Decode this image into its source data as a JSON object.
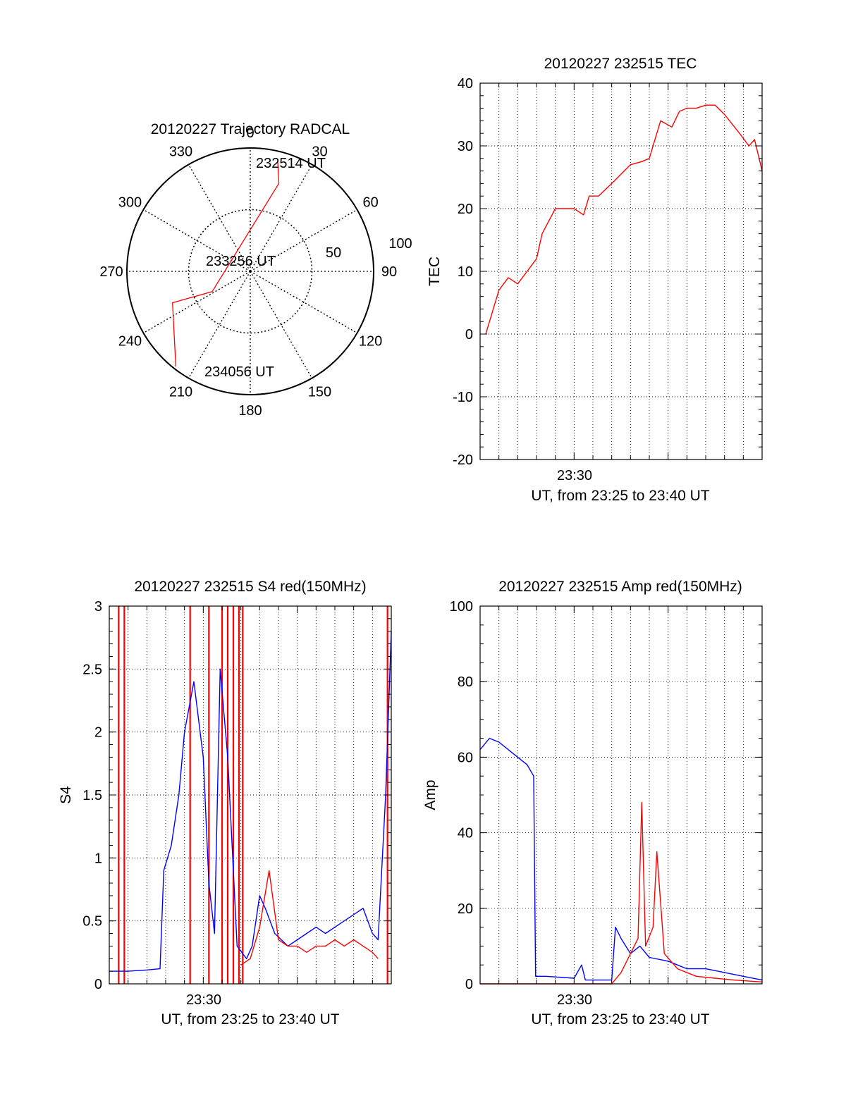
{
  "colors": {
    "red": "#ff0000",
    "blue": "#0000ff",
    "axis": "#000000",
    "grid": "#000000"
  },
  "chart_data": [
    {
      "type": "polar",
      "title": "20120227 Trajectory RADCAL",
      "theta_labels": [
        "0",
        "30",
        "60",
        "90",
        "120",
        "150",
        "180",
        "210",
        "240",
        "270",
        "300",
        "330"
      ],
      "radius_labels": [
        "50",
        "100"
      ],
      "radius_range": [
        0,
        100
      ],
      "annotations": [
        "232514 UT",
        "233256 UT",
        "234056 UT"
      ],
      "series": [
        {
          "color": "red",
          "points": [
            [
              14,
              92
            ],
            [
              18,
              75
            ],
            [
              242,
              35
            ],
            [
              248,
              68
            ],
            [
              218,
              98
            ]
          ]
        }
      ]
    },
    {
      "type": "line",
      "title": "20120227 232515 TEC",
      "xlabel": "UT, from 23:25 to 23:40 UT",
      "ylabel": "TEC",
      "xlim": [
        0,
        15
      ],
      "ylim": [
        -20,
        40
      ],
      "x_tick_labels": [
        "23:30"
      ],
      "y_tick_labels": [
        "-20",
        "-10",
        "0",
        "10",
        "20",
        "30",
        "40"
      ],
      "grid": true,
      "series": [
        {
          "color": "red",
          "x": [
            0.3,
            0.6,
            1.0,
            1.5,
            2.0,
            2.5,
            3.0,
            3.3,
            4.0,
            4.5,
            5.0,
            5.5,
            5.8,
            6.3,
            7.0,
            8.0,
            8.6,
            9.0,
            9.3,
            9.6,
            10.2,
            10.6,
            11.0,
            11.5,
            12.0,
            12.5,
            13.0,
            13.8,
            14.3,
            14.6,
            15.0
          ],
          "y": [
            0,
            3,
            7,
            9,
            8,
            10,
            12,
            16,
            20,
            20,
            20,
            19,
            22,
            22,
            24,
            27,
            27.5,
            28,
            31,
            34,
            33,
            35.5,
            36,
            36,
            36.5,
            36.5,
            35,
            32,
            30,
            31,
            26
          ]
        }
      ]
    },
    {
      "type": "line",
      "title": "20120227 232515 S4 red(150MHz)",
      "xlabel": "UT, from 23:25 to 23:40 UT",
      "ylabel": "S4",
      "xlim": [
        0,
        15
      ],
      "ylim": [
        0,
        3
      ],
      "x_tick_labels": [
        "23:30"
      ],
      "y_tick_labels": [
        "0",
        "0.5",
        "1",
        "1.5",
        "2",
        "2.5",
        "3"
      ],
      "grid": true,
      "series": [
        {
          "color": "blue",
          "x": [
            0,
            1,
            2,
            2.7,
            2.9,
            3.3,
            3.7,
            4.0,
            4.5,
            5.0,
            5.3,
            5.6,
            5.9,
            6.3,
            6.8,
            7.3,
            7.6,
            8.0,
            8.3,
            8.8,
            9.5,
            10.0,
            10.5,
            11.0,
            11.5,
            12.0,
            12.5,
            13.0,
            13.5,
            14.0,
            14.3,
            14.7,
            15.0
          ],
          "y": [
            0.1,
            0.1,
            0.11,
            0.12,
            0.9,
            1.1,
            1.5,
            2.0,
            2.4,
            1.8,
            0.8,
            0.4,
            2.5,
            1.8,
            0.3,
            0.2,
            0.3,
            0.7,
            0.6,
            0.4,
            0.3,
            0.35,
            0.4,
            0.45,
            0.4,
            0.45,
            0.5,
            0.55,
            0.6,
            0.4,
            0.35,
            1.5,
            2.8
          ]
        },
        {
          "color": "red",
          "x": [
            7.0,
            7.5,
            8.0,
            8.5,
            9.0,
            9.5,
            10.0,
            10.5,
            11.0,
            11.5,
            12.0,
            12.5,
            13.0,
            13.5,
            14.0,
            14.3
          ],
          "y": [
            0.15,
            0.2,
            0.45,
            0.9,
            0.35,
            0.3,
            0.3,
            0.25,
            0.3,
            0.3,
            0.35,
            0.3,
            0.35,
            0.3,
            0.25,
            0.2
          ]
        }
      ],
      "spikes": [
        {
          "color": "red",
          "x": [
            0.5,
            0.8,
            4.3,
            5.3,
            6.0,
            6.3,
            6.6,
            6.9,
            7.1,
            14.8
          ]
        }
      ]
    },
    {
      "type": "line",
      "title": "20120227 232515 Amp red(150MHz)",
      "xlabel": "UT, from 23:25 to 23:40 UT",
      "ylabel": "Amp",
      "xlim": [
        0,
        15
      ],
      "ylim": [
        0,
        100
      ],
      "x_tick_labels": [
        "23:30"
      ],
      "y_tick_labels": [
        "0",
        "20",
        "40",
        "60",
        "80",
        "100"
      ],
      "grid": true,
      "series": [
        {
          "color": "blue",
          "x": [
            0,
            0.5,
            1.0,
            1.5,
            2.0,
            2.5,
            2.85,
            2.95,
            3.5,
            5.0,
            5.4,
            5.6,
            6.0,
            7.0,
            7.2,
            7.5,
            8.0,
            8.5,
            9.0,
            10.0,
            11.0,
            12.0,
            13.0,
            14.0,
            15.0
          ],
          "y": [
            62,
            65,
            64,
            62,
            60,
            58,
            55,
            2,
            2,
            1.5,
            5,
            1,
            1,
            1,
            15,
            12,
            8,
            10,
            7,
            6,
            4,
            4,
            3,
            2,
            1
          ]
        },
        {
          "color": "red",
          "x": [
            0,
            3,
            5,
            7.0,
            7.5,
            8.0,
            8.4,
            8.6,
            8.8,
            9.2,
            9.4,
            9.8,
            10.5,
            11.5,
            12.5,
            13.5,
            15.0
          ],
          "y": [
            0,
            0,
            0,
            0,
            3,
            8,
            12,
            48,
            10,
            15,
            35,
            8,
            4,
            2,
            1.5,
            1,
            0.5
          ]
        }
      ]
    }
  ]
}
